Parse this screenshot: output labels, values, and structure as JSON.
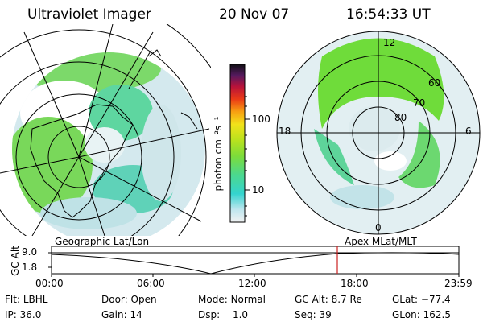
{
  "header": {
    "instrument": "Ultraviolet Imager",
    "date": "20 Nov 07",
    "time": "16:54:33 UT"
  },
  "colorbar": {
    "unit_label": "photon cm⁻²s⁻¹",
    "ticks": [
      "100",
      "10"
    ]
  },
  "geo_panel": {
    "label": "Geographic Lat/Lon"
  },
  "polar_panel": {
    "label": "Apex  MLat/MLT",
    "mlt_labels": {
      "top": "12",
      "left": "18",
      "right": "6",
      "bottom": "0"
    },
    "lat_labels": [
      "60",
      "70",
      "80"
    ]
  },
  "timeline": {
    "ylabel": "GC Alt",
    "y_ticks": [
      "9.0",
      "1.8"
    ],
    "x_ticks": [
      "00:00",
      "06:00",
      "12:00",
      "18:00",
      "23:59"
    ]
  },
  "info": {
    "flt_label": "Flt:",
    "flt_value": "LBHL",
    "ip_label": "IP:",
    "ip_value": "36.0",
    "door_label": "Door:",
    "door_value": "Open",
    "gain_label": "Gain:",
    "gain_value": "14",
    "mode_label": "Mode:",
    "mode_value": "Normal",
    "dsp_label": "Dsp:",
    "dsp_value": "1.0",
    "gcalt_label": "GC Alt:",
    "gcalt_value": "8.7 Re",
    "seq_label": "Seq:",
    "seq_value": "39",
    "glat_label": "GLat:",
    "glat_value": "−77.4",
    "glon_label": "GLon:",
    "glon_value": "162.5"
  },
  "colors": {
    "green": "#6fdc3a",
    "cyan": "#2fd6d0",
    "pale": "#c9e6ec",
    "marker": "#cc2222"
  }
}
